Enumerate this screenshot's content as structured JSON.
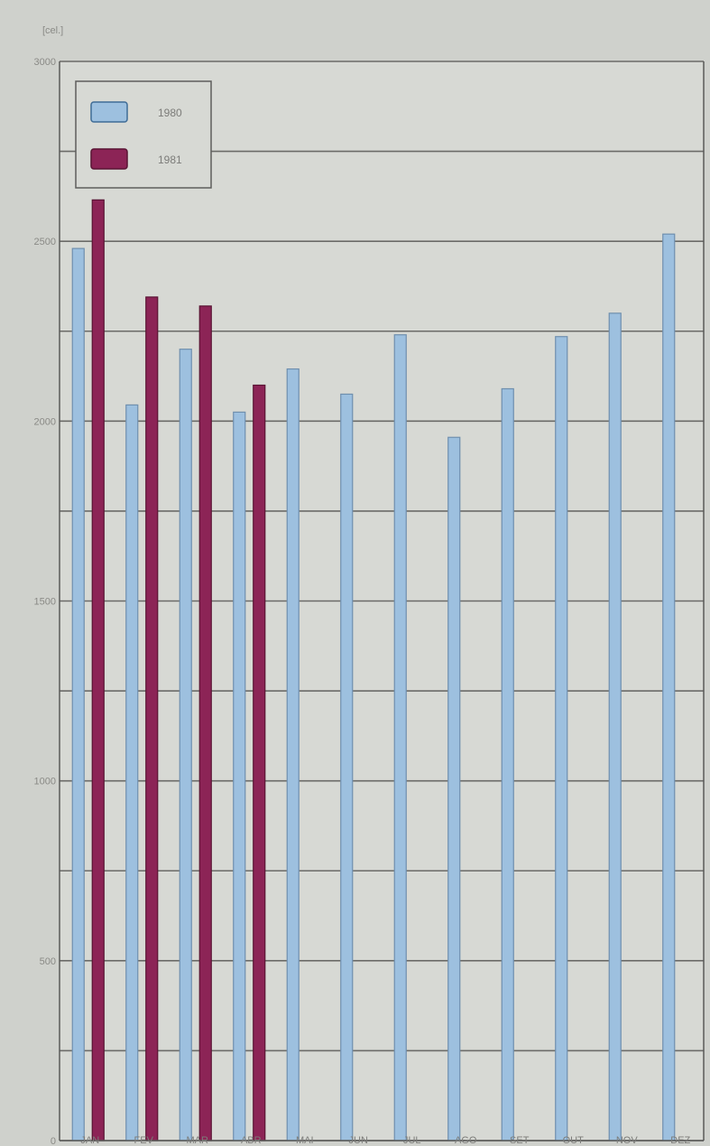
{
  "chart_data": {
    "type": "bar",
    "unit_label": "[cel.]",
    "categories": [
      "JAN",
      "FEV",
      "MAR",
      "ABR",
      "MAI",
      "JUN",
      "JUL",
      "AGO",
      "SET",
      "OUT",
      "NOV",
      "DEZ"
    ],
    "series": [
      {
        "name": "1980",
        "color": "#9dc0df",
        "values": [
          2480,
          2045,
          2200,
          2025,
          2145,
          2075,
          2240,
          1955,
          2090,
          2235,
          2300,
          2520
        ]
      },
      {
        "name": "1981",
        "color": "#8c2456",
        "values": [
          2615,
          2345,
          2320,
          2100,
          null,
          null,
          null,
          null,
          null,
          null,
          null,
          null
        ]
      }
    ],
    "yticks": [
      0,
      500,
      1000,
      1500,
      2000,
      2500,
      3000
    ],
    "ylim": [
      0,
      3000
    ],
    "grid": true,
    "gridline_step": 250,
    "legend_position": "top-left"
  }
}
